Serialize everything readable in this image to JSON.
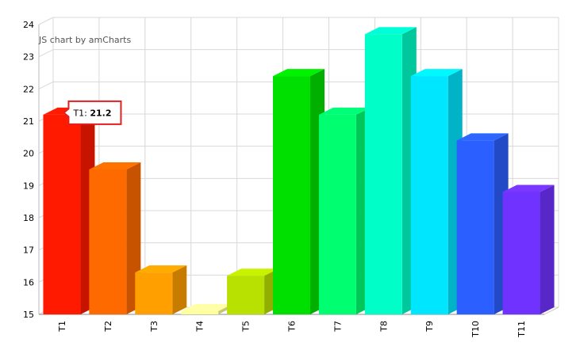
{
  "credit": "JS chart by amCharts",
  "tooltip": {
    "category": "T1",
    "prefix": "T1: ",
    "value_text": "21.2"
  },
  "chart_data": {
    "type": "bar",
    "title": "",
    "xlabel": "",
    "ylabel": "",
    "ylim": [
      15,
      24
    ],
    "yticks": [
      15,
      16,
      17,
      18,
      19,
      20,
      21,
      22,
      23,
      24
    ],
    "grid": true,
    "three_d": true,
    "categories": [
      "T1",
      "T2",
      "T3",
      "T4",
      "T5",
      "T6",
      "T7",
      "T8",
      "T9",
      "T10",
      "T11"
    ],
    "values": [
      21.2,
      19.5,
      16.3,
      15.1,
      16.2,
      22.4,
      21.2,
      23.7,
      22.4,
      20.4,
      18.8
    ],
    "colors": [
      "#ff0f00",
      "#ff6600",
      "#ff9e01",
      "#fcd202",
      "#b0de09",
      "#04d215",
      "#0d8ecf",
      "#0d52d1",
      "#2a0cd0",
      "#8a0ccf",
      "#cd0d74"
    ],
    "bar_colors": [
      "#ff1a00",
      "#ff6a00",
      "#ff9f00",
      "#ffff99",
      "#b8e000",
      "#00e000",
      "#00ff70",
      "#00ffc8",
      "#00e6ff",
      "#2b5fff",
      "#7033ff"
    ]
  }
}
